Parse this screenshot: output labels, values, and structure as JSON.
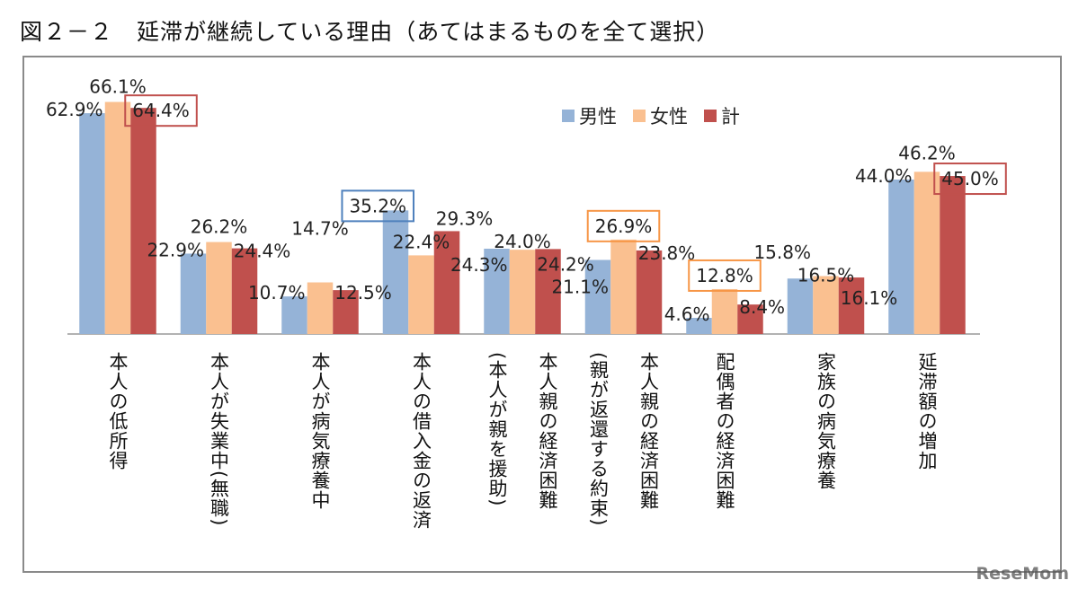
{
  "title": "図２－２　延滞が継続している理由（あてはまるものを全て選択）",
  "watermark": "ReseMom",
  "chart_data": {
    "type": "bar",
    "title": "図２－２　延滞が継続している理由（あてはまるものを全て選択）",
    "ylim": [
      0,
      70
    ],
    "grid": false,
    "legend_position": "top-center",
    "categories": [
      {
        "lines": [
          "本人の低所得"
        ]
      },
      {
        "lines": [
          "本人が失業中(無職)"
        ]
      },
      {
        "lines": [
          "本人が病気療養中"
        ]
      },
      {
        "lines": [
          "本人の借入金の返済"
        ]
      },
      {
        "lines": [
          "本人親の経済困難",
          "(本人が親を援助)"
        ]
      },
      {
        "lines": [
          "本人親の経済困難",
          "(親が返還する約束)"
        ]
      },
      {
        "lines": [
          "配偶者の経済困難"
        ]
      },
      {
        "lines": [
          "家族の病気療養"
        ]
      },
      {
        "lines": [
          "延滞額の増加"
        ]
      }
    ],
    "series": [
      {
        "name": "男性",
        "color": "#95B3D7",
        "values": [
          62.9,
          22.9,
          10.7,
          35.2,
          24.3,
          21.1,
          4.6,
          15.8,
          44.0
        ]
      },
      {
        "name": "女性",
        "color": "#FAC090",
        "values": [
          66.1,
          26.2,
          14.7,
          22.4,
          24.0,
          26.9,
          12.8,
          16.5,
          46.2
        ]
      },
      {
        "name": "計",
        "color": "#C0504D",
        "values": [
          64.4,
          24.4,
          12.5,
          29.3,
          24.2,
          23.8,
          8.4,
          16.1,
          45.0
        ]
      }
    ],
    "value_suffix": "%",
    "highlights": [
      {
        "category": 0,
        "series": 2,
        "color": "#C0504D"
      },
      {
        "category": 3,
        "series": 0,
        "color": "#4F81BD"
      },
      {
        "category": 5,
        "series": 1,
        "color": "#F79646"
      },
      {
        "category": 6,
        "series": 1,
        "color": "#F79646"
      },
      {
        "category": 8,
        "series": 2,
        "color": "#C0504D"
      }
    ]
  }
}
